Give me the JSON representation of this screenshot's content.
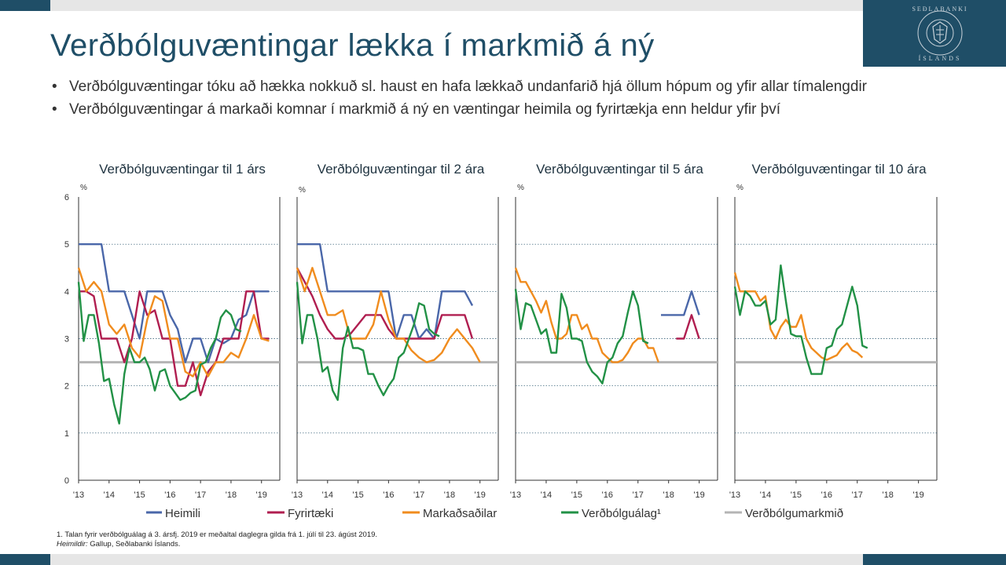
{
  "title": "Verðbólguvæntingar lækka í markmið á ný",
  "bullets": [
    "Verðbólguvæntingar tóku að hækka nokkuð sl. haust en hafa lækkað undanfarið hjá öllum hópum og yfir allar tímalengdir",
    "Verðbólguvæntingar á markaði komnar í markmið á ný en væntingar heimila og fyrirtækja enn heldur yfir því"
  ],
  "logo_alt": "SEÐLABANKI ÍSLANDS",
  "footnote": {
    "note": "1. Talan fyrir verðbólguálag á 3. ársfj. 2019 er meðaltal daglegra gilda frá 1. júlí til 23. ágúst 2019.",
    "sources_label": "Heimildir:",
    "sources": "Gallup, Seðlabanki Íslands."
  },
  "colors": {
    "heimili": "#4a67a9",
    "fyrirtaeki": "#b01e50",
    "markadur": "#f08c1e",
    "alag": "#229146",
    "markmid": "#b4b4b4",
    "brand": "#1f4e67"
  },
  "chart_data": [
    {
      "type": "line",
      "title": "Verðbólguvæntingar til 1 árs",
      "unit": "%",
      "ylim": [
        0,
        6
      ],
      "yticks": [
        "0",
        "1",
        "2",
        "3",
        "4",
        "5",
        "6"
      ],
      "xticks": [
        "'13",
        "'14",
        "'15",
        "'16",
        "'17",
        "'18",
        "'19"
      ],
      "x_start": 2013.0,
      "target": 2.5,
      "series": [
        {
          "name": "Heimili",
          "key": "heimili",
          "step": 0.25,
          "values": [
            5,
            5,
            5,
            5,
            4,
            4,
            4,
            3.5,
            3,
            4,
            4,
            4,
            3.5,
            3.2,
            2.5,
            3,
            3,
            2.5,
            3,
            2.9,
            3,
            3.4,
            3.5,
            4,
            4,
            4
          ]
        },
        {
          "name": "Fyrirtæki",
          "key": "fyrirtaeki",
          "step": 0.25,
          "values": [
            4,
            4,
            3.9,
            3,
            3,
            3,
            2.5,
            3,
            4,
            3.5,
            3.6,
            3,
            3,
            2,
            2,
            2.5,
            1.8,
            2.3,
            2.5,
            3,
            3,
            3,
            4,
            4,
            3,
            3
          ]
        },
        {
          "name": "Markaðsaðilar",
          "key": "markadur",
          "step": 0.25,
          "values": [
            4.5,
            4,
            4.2,
            4,
            3.3,
            3.1,
            3.3,
            2.8,
            2.6,
            3.4,
            3.9,
            3.8,
            3,
            3,
            2.3,
            2.2,
            2.5,
            2.2,
            2.5,
            2.5,
            2.7,
            2.6,
            3,
            3.5,
            3,
            2.95
          ]
        },
        {
          "name": "Verðbólguálag",
          "key": "alag",
          "step": 0.1667,
          "values": [
            4.2,
            2.95,
            3.5,
            3.5,
            2.9,
            2.1,
            2.15,
            1.6,
            1.2,
            2.25,
            2.8,
            2.5,
            2.5,
            2.6,
            2.35,
            1.9,
            2.3,
            2.35,
            2.0,
            1.85,
            1.7,
            1.75,
            1.85,
            1.9,
            2.45,
            2.5,
            2.8,
            3.0,
            3.45,
            3.6,
            3.5,
            3.2,
            3.15
          ]
        }
      ]
    },
    {
      "type": "line",
      "title": "Verðbólguvæntingar til 2 ára",
      "unit": "%",
      "ylim": [
        0,
        6
      ],
      "xticks": [
        "'13",
        "'14",
        "'15",
        "'16",
        "'17",
        "'18",
        "'19"
      ],
      "x_start": 2013.0,
      "target": 2.5,
      "series": [
        {
          "name": "Heimili",
          "key": "heimili",
          "step": 0.25,
          "values": [
            5,
            5,
            5,
            5,
            4,
            4,
            4,
            4,
            4,
            4,
            4,
            4,
            4,
            3,
            3.5,
            3.5,
            3,
            3.2,
            3,
            4,
            4,
            4,
            4,
            3.7
          ]
        },
        {
          "name": "Fyrirtæki",
          "key": "fyrirtaeki",
          "step": 0.25,
          "values": [
            4.5,
            4.2,
            3.9,
            3.5,
            3.2,
            3,
            3,
            3.1,
            3.3,
            3.5,
            3.5,
            3.5,
            3.2,
            3,
            3,
            3,
            3,
            3,
            3,
            3.5,
            3.5,
            3.5,
            3.5,
            3
          ]
        },
        {
          "name": "Markaðsaðilar",
          "key": "markadur",
          "step": 0.25,
          "values": [
            4.5,
            4,
            4.5,
            4,
            3.5,
            3.5,
            3.6,
            3,
            3,
            3,
            3.3,
            4,
            3.4,
            3,
            3,
            2.75,
            2.6,
            2.5,
            2.55,
            2.7,
            3,
            3.2,
            3,
            2.8,
            2.5
          ]
        },
        {
          "name": "Verðbólguálag",
          "key": "alag",
          "step": 0.1667,
          "values": [
            4.2,
            2.9,
            3.5,
            3.5,
            3.0,
            2.3,
            2.4,
            1.9,
            1.7,
            2.8,
            3.25,
            2.8,
            2.8,
            2.75,
            2.25,
            2.25,
            2.0,
            1.8,
            2.0,
            2.15,
            2.6,
            2.7,
            3.0,
            3.3,
            3.75,
            3.7,
            3.2,
            3.1,
            3.05
          ]
        }
      ]
    },
    {
      "type": "line",
      "title": "Verðbólguvæntingar til 5 ára",
      "unit": "%",
      "ylim": [
        0,
        6
      ],
      "xticks": [
        "'13",
        "'14",
        "'15",
        "'16",
        "'17",
        "'18",
        "'19"
      ],
      "x_start": 2013.0,
      "target": 2.5,
      "series": [
        {
          "name": "Heimili",
          "key": "heimili",
          "x_start": 2017.75,
          "step": 0.25,
          "values": [
            3.5,
            3.5,
            3.5,
            3.5,
            4,
            3.5
          ]
        },
        {
          "name": "Fyrirtæki",
          "key": "fyrirtaeki",
          "x_start": 2018.25,
          "step": 0.25,
          "values": [
            3,
            3,
            3.5,
            3
          ]
        },
        {
          "name": "Markaðsaðilar",
          "key": "markadur",
          "step": 0.1667,
          "values": [
            4.5,
            4.2,
            4.2,
            4.0,
            3.8,
            3.55,
            3.8,
            3.35,
            3.0,
            3.0,
            3.1,
            3.5,
            3.5,
            3.2,
            3.3,
            3.0,
            3.0,
            2.7,
            2.6,
            2.5,
            2.5,
            2.55,
            2.7,
            2.9,
            3.0,
            3.0,
            2.8,
            2.8,
            2.5
          ]
        },
        {
          "name": "Verðbólguálag",
          "key": "alag",
          "step": 0.1667,
          "values": [
            4.05,
            3.2,
            3.75,
            3.7,
            3.4,
            3.1,
            3.2,
            2.7,
            2.7,
            3.95,
            3.65,
            3.0,
            3.0,
            2.95,
            2.5,
            2.3,
            2.2,
            2.05,
            2.5,
            2.6,
            2.9,
            3.05,
            3.55,
            4.0,
            3.7,
            2.95,
            2.9
          ]
        }
      ]
    },
    {
      "type": "line",
      "title": "Verðbólguvæntingar til 10 ára",
      "unit": "%",
      "ylim": [
        0,
        6
      ],
      "xticks": [
        "'13",
        "'14",
        "'15",
        "'16",
        "'17",
        "'18",
        "'19"
      ],
      "x_start": 2013.0,
      "target": 2.5,
      "series": [
        {
          "name": "Markaðsaðilar",
          "key": "markadur",
          "step": 0.1667,
          "values": [
            4.4,
            4.0,
            4.0,
            4.0,
            4.0,
            3.8,
            3.9,
            3.2,
            3.0,
            3.25,
            3.4,
            3.25,
            3.25,
            3.5,
            3.0,
            2.8,
            2.7,
            2.6,
            2.55,
            2.6,
            2.65,
            2.8,
            2.9,
            2.75,
            2.7,
            2.6
          ]
        },
        {
          "name": "Verðbólguálag",
          "key": "alag",
          "step": 0.1667,
          "values": [
            4.1,
            3.5,
            4.0,
            3.9,
            3.7,
            3.7,
            3.8,
            3.3,
            3.4,
            4.55,
            3.8,
            3.1,
            3.05,
            3.05,
            2.6,
            2.25,
            2.25,
            2.25,
            2.8,
            2.85,
            3.2,
            3.3,
            3.7,
            4.1,
            3.7,
            2.85,
            2.8
          ]
        }
      ]
    }
  ],
  "legend": [
    {
      "label": "Heimili",
      "key": "heimili"
    },
    {
      "label": "Fyrirtæki",
      "key": "fyrirtaeki"
    },
    {
      "label": "Markaðsaðilar",
      "key": "markadur"
    },
    {
      "label": "Verðbólguálag¹",
      "key": "alag"
    },
    {
      "label": "Verðbólgumarkmið",
      "key": "markmid"
    }
  ]
}
